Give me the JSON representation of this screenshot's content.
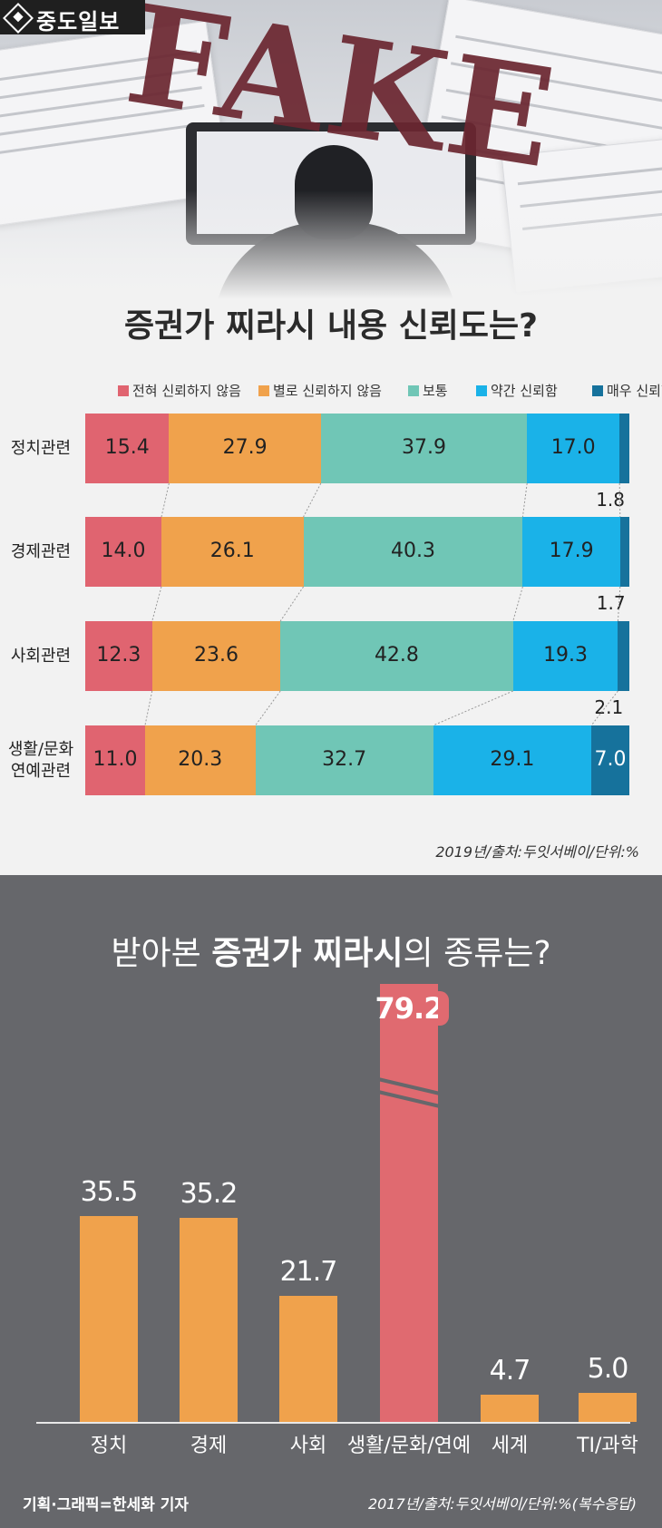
{
  "brand": {
    "name": "중도일보"
  },
  "chart_data": [
    {
      "type": "bar",
      "stacked": true,
      "orientation": "horizontal",
      "title": "증권가 찌라시 내용 신뢰도는?",
      "categories": [
        "정치관련",
        "경제관련",
        "사회관련",
        "생활/문화\n연예관련"
      ],
      "series": [
        {
          "name": "전혀 신뢰하지 않음",
          "color": "#e06470",
          "values": [
            "15.4",
            "14.0",
            "12.3",
            "11.0"
          ]
        },
        {
          "name": "별로 신뢰하지 않음",
          "color": "#f0a24c",
          "values": [
            "27.9",
            "26.1",
            "23.6",
            "20.3"
          ]
        },
        {
          "name": "보통",
          "color": "#70c6b6",
          "values": [
            "37.9",
            "40.3",
            "42.8",
            "32.7"
          ]
        },
        {
          "name": "약간 신뢰함",
          "color": "#1ab2e8",
          "values": [
            "17.0",
            "17.9",
            "19.3",
            "29.1"
          ]
        },
        {
          "name": "매우 신뢰함",
          "color": "#16729c",
          "values": [
            "1.8",
            "1.7",
            "2.1",
            "7.0"
          ]
        }
      ],
      "xlim": [
        0,
        100
      ],
      "legend": "top",
      "source": "2019년/출처:두잇서베이/단위:%"
    },
    {
      "type": "bar",
      "title_parts": [
        "받아본 ",
        "증권가 찌라시",
        "의 종류는?"
      ],
      "categories": [
        "정치",
        "경제",
        "사회",
        "생활/문화/연예",
        "세계",
        "TI/과학"
      ],
      "values": [
        "35.5",
        "35.2",
        "21.7",
        "79.2",
        "4.7",
        "5.0"
      ],
      "highlight_index": 3,
      "colors": {
        "default": "#f0a24c",
        "highlight": "#e06a70"
      },
      "axis_break": true,
      "ylim": [
        0,
        40
      ],
      "source": "2017년/출처:두잇서베이/단위:%(복수응답)"
    }
  ],
  "credit": "기획·그래픽=한세화 기자",
  "colors": {
    "panel": "#66676b",
    "background": "#f2f2f2"
  }
}
